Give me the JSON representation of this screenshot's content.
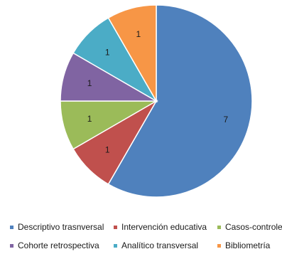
{
  "chart_data": {
    "type": "pie",
    "categories": [
      "Descriptivo trasnversal",
      "Intervención educativa",
      "Casos-controles",
      "Cohorte retrospectiva",
      "Analítico transversal",
      "Bibliometría"
    ],
    "values": [
      7,
      1,
      1,
      1,
      1,
      1
    ],
    "data_labels": [
      "7",
      "1",
      "1",
      "1",
      "1",
      "1"
    ],
    "colors": [
      "#4F81BD",
      "#C0504D",
      "#9BBB59",
      "#8064A2",
      "#4BACC6",
      "#F79646"
    ],
    "legend_position": "bottom",
    "start_angle_deg": 0,
    "direction": "clockwise"
  }
}
